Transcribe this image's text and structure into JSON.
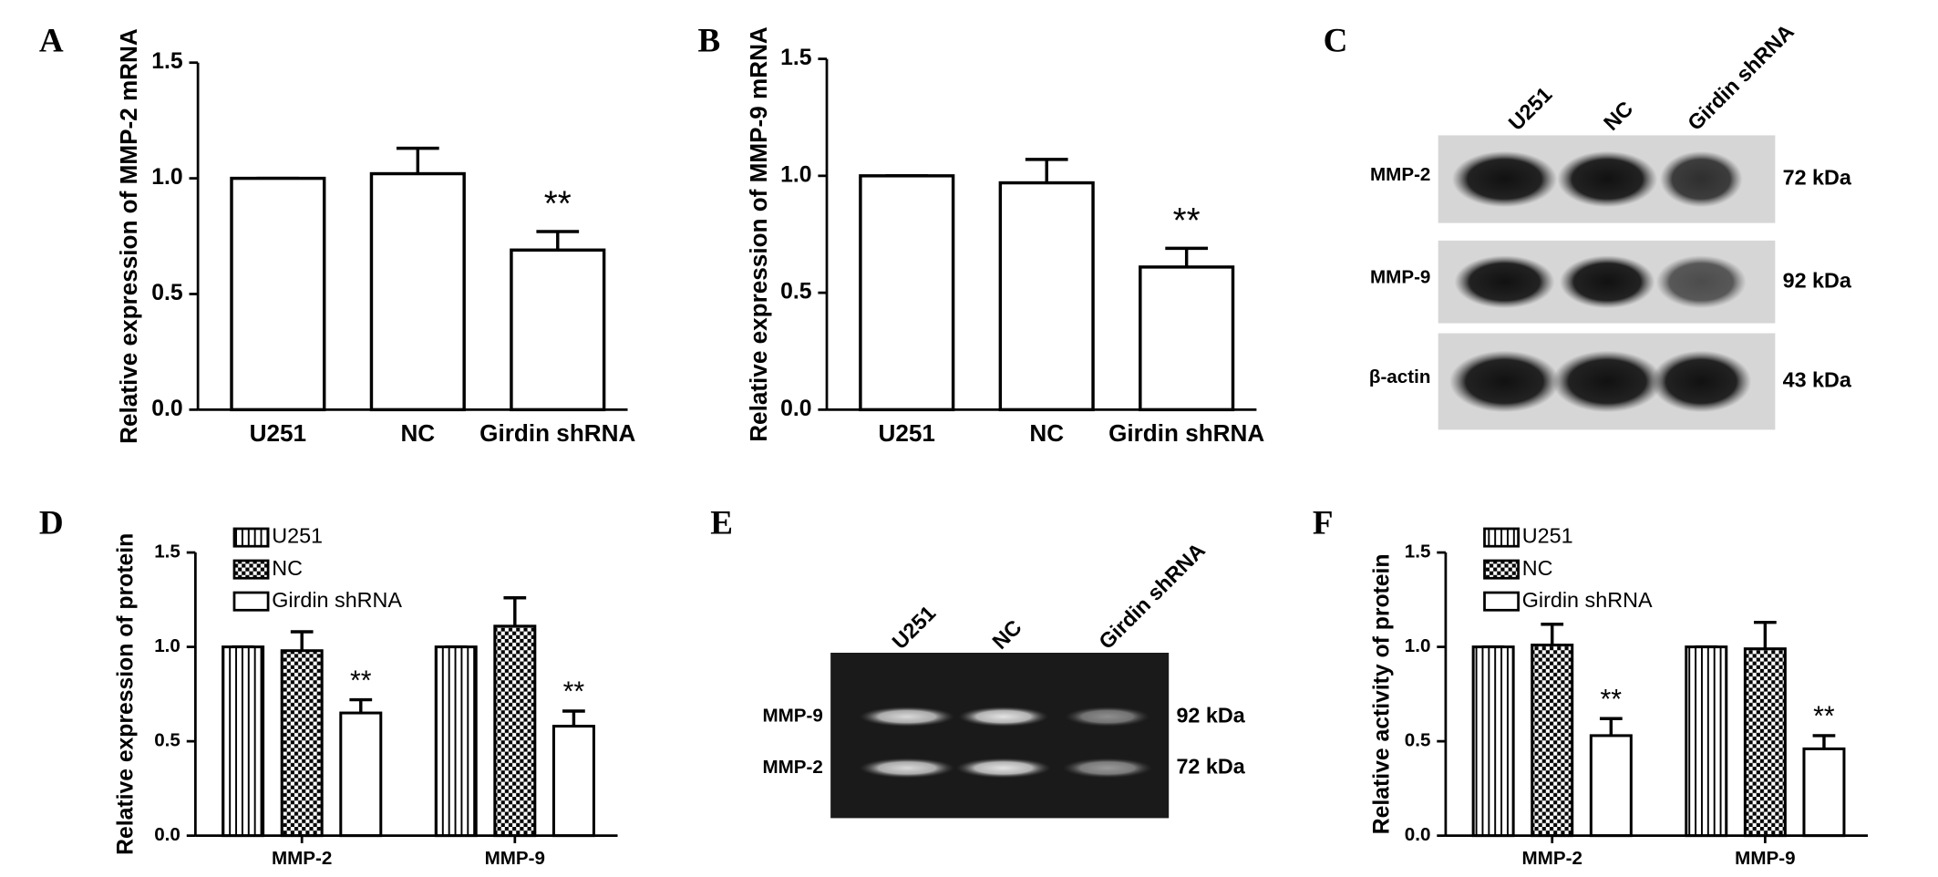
{
  "chart_data": [
    {
      "type": "bar",
      "panel": "A",
      "y_label": "Relative expression of MMP-2 mRNA",
      "categories": [
        "U251",
        "NC",
        "Girdin shRNA"
      ],
      "values": [
        1.0,
        1.02,
        0.69
      ],
      "errors": [
        0,
        0.11,
        0.08
      ],
      "significance": [
        null,
        null,
        "**"
      ],
      "color": "#ffffff",
      "ylim": [
        0,
        1.5
      ],
      "yticks": [
        {
          "value": 0,
          "label": "0.0"
        },
        {
          "value": 0.5,
          "label": "0.5"
        },
        {
          "value": 1,
          "label": "1.0"
        },
        {
          "value": 1.5,
          "label": "1.5"
        }
      ]
    },
    {
      "type": "bar",
      "panel": "B",
      "y_label": "Relative expression of MMP-9 mRNA",
      "categories": [
        "U251",
        "NC",
        "Girdin shRNA"
      ],
      "values": [
        1.0,
        0.97,
        0.61
      ],
      "errors": [
        0,
        0.1,
        0.08
      ],
      "significance": [
        null,
        null,
        "**"
      ],
      "color": "#ffffff",
      "ylim": [
        0,
        1.5
      ],
      "yticks": [
        {
          "value": 0,
          "label": "0.0"
        },
        {
          "value": 0.5,
          "label": "0.5"
        },
        {
          "value": 1,
          "label": "1.0"
        },
        {
          "value": 1.5,
          "label": "1.5"
        }
      ]
    },
    {
      "type": "grouped_bar",
      "panel": "D",
      "y_label": "Relative expression of protein",
      "categories": [
        "MMP-2",
        "MMP-9"
      ],
      "series": [
        {
          "name": "U251",
          "pattern": "vertical-stripes",
          "values": [
            1.0,
            1.0
          ],
          "errors": [
            0,
            0
          ]
        },
        {
          "name": "NC",
          "pattern": "checker",
          "values": [
            0.98,
            1.11
          ],
          "errors": [
            0.1,
            0.15
          ]
        },
        {
          "name": "Girdin shRNA",
          "pattern": "none",
          "values": [
            0.65,
            0.58
          ],
          "errors": [
            0.07,
            0.08
          ],
          "significance": [
            "**",
            "**"
          ]
        }
      ],
      "legend": "upper left",
      "ylim": [
        0,
        1.5
      ],
      "yticks": [
        {
          "value": 0,
          "label": "0.0"
        },
        {
          "value": 0.5,
          "label": "0.5"
        },
        {
          "value": 1,
          "label": "1.0"
        },
        {
          "value": 1.5,
          "label": "1.5"
        }
      ]
    },
    {
      "type": "grouped_bar",
      "panel": "F",
      "y_label": "Relative activity of protein",
      "categories": [
        "MMP-2",
        "MMP-9"
      ],
      "series": [
        {
          "name": "U251",
          "pattern": "vertical-stripes",
          "values": [
            1.0,
            1.0
          ],
          "errors": [
            0,
            0
          ]
        },
        {
          "name": "NC",
          "pattern": "checker",
          "values": [
            1.01,
            0.99
          ],
          "errors": [
            0.11,
            0.14
          ]
        },
        {
          "name": "Girdin shRNA",
          "pattern": "none",
          "values": [
            0.53,
            0.46
          ],
          "errors": [
            0.09,
            0.07
          ],
          "significance": [
            "**",
            "**"
          ]
        }
      ],
      "legend": "upper left",
      "ylim": [
        0,
        1.5
      ],
      "yticks": [
        {
          "value": 0,
          "label": "0.0"
        },
        {
          "value": 0.5,
          "label": "0.5"
        },
        {
          "value": 1,
          "label": "1.0"
        },
        {
          "value": 1.5,
          "label": "1.5"
        }
      ]
    }
  ],
  "blots": [
    {
      "panel": "C",
      "lanes": [
        "U251",
        "NC",
        "Girdin shRNA"
      ],
      "rows": [
        {
          "label": "MMP-2",
          "size": "72 kDa"
        },
        {
          "label": "MMP-9",
          "size": "92 kDa"
        },
        {
          "label": "β-actin",
          "size": "43 kDa"
        }
      ]
    },
    {
      "panel": "E",
      "lanes": [
        "U251",
        "NC",
        "Girdin shRNA"
      ],
      "rows": [
        {
          "label": "MMP-9",
          "size": "92 kDa"
        },
        {
          "label": "MMP-2",
          "size": "72 kDa"
        }
      ]
    }
  ]
}
